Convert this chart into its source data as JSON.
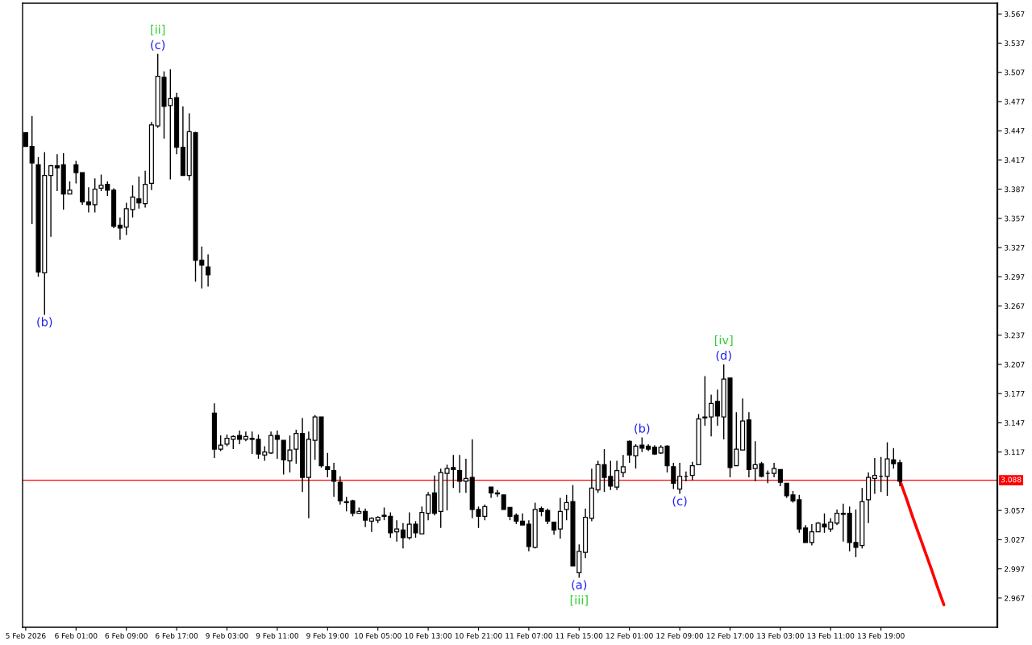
{
  "chart_data": {
    "type": "candlestick",
    "color": "#000000",
    "categories": [
      "5 Feb 2026",
      null,
      null,
      null,
      null,
      null,
      null,
      null,
      "6 Feb 01:00",
      null,
      null,
      null,
      null,
      null,
      null,
      null,
      "6 Feb 09:00",
      null,
      null,
      null,
      null,
      null,
      null,
      null,
      "6 Feb 17:00",
      null,
      null,
      null,
      null,
      null,
      null,
      null,
      "9 Feb 03:00",
      null,
      null,
      null,
      null,
      null,
      null,
      null,
      "9 Feb 11:00",
      null,
      null,
      null,
      null,
      null,
      null,
      null,
      "9 Feb 19:00",
      null,
      null,
      null,
      null,
      null,
      null,
      null,
      "10 Feb 05:00",
      null,
      null,
      null,
      null,
      null,
      null,
      null,
      "10 Feb 13:00",
      null,
      null,
      null,
      null,
      null,
      null,
      null,
      "10 Feb 21:00",
      null,
      null,
      null,
      null,
      null,
      null,
      null,
      "11 Feb 07:00",
      null,
      null,
      null,
      null,
      null,
      null,
      null,
      "11 Feb 15:00",
      null,
      null,
      null,
      null,
      null,
      null,
      null,
      "12 Feb 01:00",
      null,
      null,
      null,
      null,
      null,
      null,
      null,
      "12 Feb 09:00",
      null,
      null,
      null,
      null,
      null,
      null,
      null,
      "12 Feb 17:00",
      null,
      null,
      null,
      null,
      null,
      null,
      null,
      "13 Feb 03:00",
      null,
      null,
      null,
      null,
      null,
      null,
      null,
      "13 Feb 11:00",
      null,
      null,
      null,
      null,
      null,
      null,
      null,
      "13 Feb 19:00",
      null,
      null,
      null,
      null,
      null,
      null,
      null,
      null,
      null,
      null,
      null,
      null,
      null,
      null,
      null,
      null,
      null,
      null
    ],
    "ohlc": [
      [
        3.445,
        3.445,
        3.431,
        3.431
      ],
      [
        3.431,
        3.462,
        3.351,
        3.414
      ],
      [
        3.412,
        3.42,
        3.297,
        3.302
      ],
      [
        3.301,
        3.425,
        3.258,
        3.401
      ],
      [
        3.401,
        3.412,
        3.338,
        3.411
      ],
      [
        3.411,
        3.423,
        3.385,
        3.409
      ],
      [
        3.412,
        3.424,
        3.366,
        3.382
      ],
      [
        3.382,
        3.395,
        3.382,
        3.386
      ],
      [
        3.412,
        3.416,
        3.393,
        3.404
      ],
      [
        3.404,
        3.404,
        3.371,
        3.374
      ],
      [
        3.374,
        3.389,
        3.363,
        3.371
      ],
      [
        3.371,
        3.398,
        3.363,
        3.387
      ],
      [
        3.388,
        3.402,
        3.385,
        3.391
      ],
      [
        3.392,
        3.395,
        3.38,
        3.386
      ],
      [
        3.386,
        3.388,
        3.347,
        3.349
      ],
      [
        3.35,
        3.358,
        3.335,
        3.347
      ],
      [
        3.348,
        3.373,
        3.34,
        3.367
      ],
      [
        3.366,
        3.391,
        3.358,
        3.379
      ],
      [
        3.377,
        3.4,
        3.367,
        3.373
      ],
      [
        3.372,
        3.406,
        3.368,
        3.392
      ],
      [
        3.393,
        3.456,
        3.386,
        3.453
      ],
      [
        3.452,
        3.526,
        3.45,
        3.503
      ],
      [
        3.502,
        3.508,
        3.439,
        3.472
      ],
      [
        3.473,
        3.51,
        3.397,
        3.48
      ],
      [
        3.481,
        3.486,
        3.423,
        3.43
      ],
      [
        3.43,
        3.472,
        3.401,
        3.401
      ],
      [
        3.401,
        3.465,
        3.396,
        3.446
      ],
      [
        3.445,
        3.446,
        3.292,
        3.314
      ],
      [
        3.314,
        3.328,
        3.285,
        3.309
      ],
      [
        3.307,
        3.32,
        3.287,
        3.299
      ],
      [
        3.157,
        3.167,
        3.111,
        3.12
      ],
      [
        3.12,
        3.134,
        3.118,
        3.124
      ],
      [
        3.125,
        3.135,
        3.123,
        3.131
      ],
      [
        3.13,
        3.134,
        3.12,
        3.133
      ],
      [
        3.134,
        3.139,
        3.125,
        3.13
      ],
      [
        3.13,
        3.138,
        3.128,
        3.133
      ],
      [
        3.131,
        3.138,
        3.115,
        3.13
      ],
      [
        3.13,
        3.135,
        3.11,
        3.115
      ],
      [
        3.114,
        3.123,
        3.108,
        3.117
      ],
      [
        3.116,
        3.138,
        3.115,
        3.134
      ],
      [
        3.134,
        3.139,
        3.11,
        3.13
      ],
      [
        3.129,
        3.129,
        3.094,
        3.109
      ],
      [
        3.108,
        3.134,
        3.096,
        3.119
      ],
      [
        3.12,
        3.14,
        3.105,
        3.136
      ],
      [
        3.136,
        3.152,
        3.076,
        3.091
      ],
      [
        3.091,
        3.138,
        3.049,
        3.13
      ],
      [
        3.129,
        3.155,
        3.109,
        3.153
      ],
      [
        3.153,
        3.153,
        3.101,
        3.103
      ],
      [
        3.102,
        3.116,
        3.091,
        3.099
      ],
      [
        3.098,
        3.106,
        3.071,
        3.087
      ],
      [
        3.086,
        3.092,
        3.063,
        3.067
      ],
      [
        3.066,
        3.071,
        3.056,
        3.065
      ],
      [
        3.067,
        3.068,
        3.051,
        3.054
      ],
      [
        3.054,
        3.06,
        3.054,
        3.056
      ],
      [
        3.056,
        3.059,
        3.04,
        3.047
      ],
      [
        3.046,
        3.05,
        3.035,
        3.049
      ],
      [
        3.047,
        3.051,
        3.044,
        3.05
      ],
      [
        3.052,
        3.06,
        3.047,
        3.051
      ],
      [
        3.051,
        3.055,
        3.029,
        3.034
      ],
      [
        3.035,
        3.047,
        3.025,
        3.038
      ],
      [
        3.037,
        3.044,
        3.018,
        3.029
      ],
      [
        3.029,
        3.055,
        3.027,
        3.043
      ],
      [
        3.043,
        3.046,
        3.029,
        3.034
      ],
      [
        3.033,
        3.061,
        3.033,
        3.055
      ],
      [
        3.054,
        3.076,
        3.047,
        3.073
      ],
      [
        3.075,
        3.093,
        3.052,
        3.054
      ],
      [
        3.056,
        3.1,
        3.039,
        3.096
      ],
      [
        3.095,
        3.104,
        3.057,
        3.1
      ],
      [
        3.101,
        3.114,
        3.08,
        3.099
      ],
      [
        3.098,
        3.114,
        3.075,
        3.087
      ],
      [
        3.087,
        3.11,
        3.075,
        3.09
      ],
      [
        3.091,
        3.13,
        3.049,
        3.058
      ],
      [
        3.058,
        3.061,
        3.039,
        3.051
      ],
      [
        3.051,
        3.063,
        3.047,
        3.061
      ],
      [
        3.081,
        3.081,
        3.07,
        3.075
      ],
      [
        3.074,
        3.078,
        3.071,
        3.075
      ],
      [
        3.073,
        3.073,
        3.058,
        3.058
      ],
      [
        3.06,
        3.06,
        3.047,
        3.051
      ],
      [
        3.052,
        3.054,
        3.043,
        3.046
      ],
      [
        3.046,
        3.054,
        3.042,
        3.042
      ],
      [
        3.043,
        3.047,
        3.015,
        3.02
      ],
      [
        3.019,
        3.065,
        3.018,
        3.058
      ],
      [
        3.059,
        3.061,
        3.051,
        3.056
      ],
      [
        3.057,
        3.059,
        3.043,
        3.046
      ],
      [
        3.045,
        3.045,
        3.032,
        3.037
      ],
      [
        3.038,
        3.07,
        3.028,
        3.056
      ],
      [
        3.058,
        3.073,
        3.047,
        3.065
      ],
      [
        3.066,
        3.083,
        3.0,
        3.0
      ],
      [
        2.993,
        3.022,
        2.988,
        3.015
      ],
      [
        3.014,
        3.059,
        3.008,
        3.05
      ],
      [
        3.049,
        3.1,
        3.046,
        3.08
      ],
      [
        3.078,
        3.108,
        3.075,
        3.104
      ],
      [
        3.104,
        3.12,
        3.076,
        3.091
      ],
      [
        3.092,
        3.108,
        3.078,
        3.082
      ],
      [
        3.081,
        3.108,
        3.078,
        3.098
      ],
      [
        3.096,
        3.114,
        3.091,
        3.102
      ],
      [
        3.128,
        3.129,
        3.106,
        3.114
      ],
      [
        3.113,
        3.125,
        3.1,
        3.123
      ],
      [
        3.124,
        3.132,
        3.117,
        3.121
      ],
      [
        3.123,
        3.125,
        3.118,
        3.12
      ],
      [
        3.122,
        3.124,
        3.114,
        3.115
      ],
      [
        3.116,
        3.124,
        3.115,
        3.122
      ],
      [
        3.123,
        3.124,
        3.096,
        3.103
      ],
      [
        3.102,
        3.106,
        3.079,
        3.085
      ],
      [
        3.079,
        3.106,
        3.074,
        3.092
      ],
      [
        3.092,
        3.097,
        3.087,
        3.092
      ],
      [
        3.093,
        3.107,
        3.088,
        3.103
      ],
      [
        3.104,
        3.156,
        3.104,
        3.151
      ],
      [
        3.153,
        3.195,
        3.144,
        3.152
      ],
      [
        3.153,
        3.176,
        3.133,
        3.167
      ],
      [
        3.169,
        3.181,
        3.144,
        3.154
      ],
      [
        3.153,
        3.207,
        3.13,
        3.192
      ],
      [
        3.193,
        3.193,
        3.091,
        3.101
      ],
      [
        3.103,
        3.158,
        3.103,
        3.12
      ],
      [
        3.119,
        3.172,
        3.119,
        3.149
      ],
      [
        3.15,
        3.158,
        3.091,
        3.099
      ],
      [
        3.1,
        3.128,
        3.087,
        3.104
      ],
      [
        3.105,
        3.107,
        3.091,
        3.092
      ],
      [
        3.095,
        3.098,
        3.085,
        3.095
      ],
      [
        3.095,
        3.106,
        3.091,
        3.1
      ],
      [
        3.099,
        3.099,
        3.082,
        3.086
      ],
      [
        3.085,
        3.085,
        3.07,
        3.072
      ],
      [
        3.073,
        3.077,
        3.065,
        3.067
      ],
      [
        3.068,
        3.073,
        3.034,
        3.038
      ],
      [
        3.039,
        3.042,
        3.024,
        3.024
      ],
      [
        3.024,
        3.043,
        3.021,
        3.035
      ],
      [
        3.035,
        3.045,
        3.035,
        3.044
      ],
      [
        3.043,
        3.054,
        3.034,
        3.04
      ],
      [
        3.038,
        3.049,
        3.035,
        3.045
      ],
      [
        3.044,
        3.058,
        3.042,
        3.054
      ],
      [
        3.054,
        3.064,
        3.025,
        3.053
      ],
      [
        3.054,
        3.061,
        3.015,
        3.024
      ],
      [
        3.024,
        3.058,
        3.009,
        3.019
      ],
      [
        3.021,
        3.08,
        3.018,
        3.066
      ],
      [
        3.068,
        3.096,
        3.044,
        3.091
      ],
      [
        3.09,
        3.111,
        3.074,
        3.093
      ],
      [
        3.092,
        3.112,
        3.076,
        3.092
      ],
      [
        3.092,
        3.127,
        3.072,
        3.11
      ],
      [
        3.109,
        3.121,
        3.1,
        3.105
      ],
      [
        3.106,
        3.109,
        3.082,
        3.087
      ],
      null,
      null,
      null,
      null,
      null,
      null,
      null,
      null,
      null,
      null,
      null,
      null,
      null,
      null,
      null
    ],
    "series": [
      {
        "type": "line",
        "color": "#ff0000",
        "values": [
          null,
          null,
          null,
          null,
          null,
          null,
          null,
          null,
          null,
          null,
          null,
          null,
          null,
          null,
          null,
          null,
          null,
          null,
          null,
          null,
          null,
          null,
          null,
          null,
          null,
          null,
          null,
          null,
          null,
          null,
          null,
          null,
          null,
          null,
          null,
          null,
          null,
          null,
          null,
          null,
          null,
          null,
          null,
          null,
          null,
          null,
          null,
          null,
          null,
          null,
          null,
          null,
          null,
          null,
          null,
          null,
          null,
          null,
          null,
          null,
          null,
          null,
          null,
          null,
          null,
          null,
          null,
          null,
          null,
          null,
          null,
          null,
          null,
          null,
          null,
          null,
          null,
          null,
          null,
          null,
          null,
          null,
          null,
          null,
          null,
          null,
          null,
          null,
          null,
          null,
          null,
          null,
          null,
          null,
          null,
          null,
          null,
          null,
          null,
          null,
          null,
          null,
          null,
          null,
          null,
          null,
          null,
          null,
          null,
          null,
          null,
          null,
          null,
          null,
          null,
          null,
          null,
          null,
          null,
          null,
          null,
          null,
          null,
          null,
          null,
          null,
          null,
          null,
          null,
          null,
          null,
          null,
          null,
          null,
          null,
          null,
          null,
          null,
          null,
          3.088,
          3.07,
          3.051,
          3.033,
          3.015,
          2.997,
          2.978,
          2.96,
          null,
          null,
          null,
          null,
          null,
          null,
          null,
          null
        ]
      }
    ],
    "ylim": [
      2.937,
      3.578
    ],
    "yticks": [
      3.567,
      3.537,
      3.507,
      3.477,
      3.447,
      3.417,
      3.387,
      3.357,
      3.327,
      3.297,
      3.267,
      3.237,
      3.207,
      3.177,
      3.147,
      3.117,
      3.057,
      3.027,
      2.997,
      2.967
    ],
    "ref_lines": [
      {
        "axis": "y",
        "value": 3.088,
        "label": "3.088",
        "color": "#ff0000"
      }
    ],
    "annotations": [
      {
        "text": "(c)",
        "y": 3.526
      },
      {
        "text": "[ii]",
        "y": 3.526
      },
      {
        "text": "(b)",
        "y": 3.258
      },
      {
        "text": "(a)",
        "y": 2.988
      },
      {
        "text": "[iii]",
        "y": 2.988
      },
      {
        "text": "(b)",
        "y": 3.132
      },
      {
        "text": "(c)",
        "y": 3.074
      },
      {
        "text": "(d)",
        "y": 3.207
      },
      {
        "text": "[iv]",
        "y": 3.207
      }
    ]
  }
}
